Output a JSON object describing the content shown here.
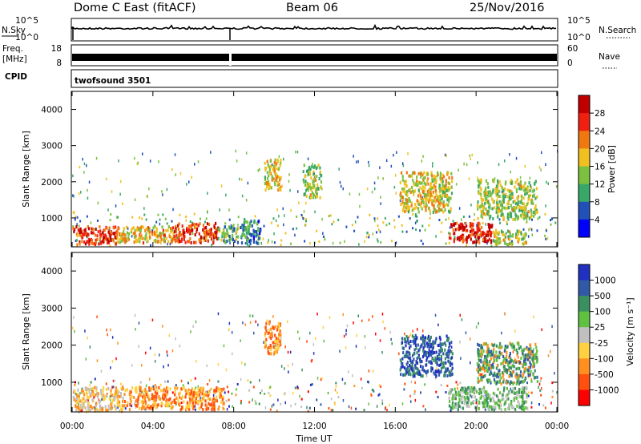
{
  "header": {
    "station": "Dome C East (fitACF)",
    "beam": "Beam 06",
    "date": "25/Nov/2016"
  },
  "strips": {
    "nsky_label": "N.Sky",
    "nsky_ticks": [
      "10^5",
      "10^0"
    ],
    "nsearch_label": "N.Search",
    "nsearch_ticks": [
      "10^5",
      "10^0"
    ],
    "freq_label": "Freq.",
    "freq_unit": "[MHz]",
    "freq_ticks": [
      "18",
      "8"
    ],
    "nave_label": "Nave",
    "nave_ticks": [
      "60",
      "0"
    ],
    "cpid_label": "CPID",
    "cpid_value": "twofsound 3501"
  },
  "chart_data": [
    {
      "type": "heatmap",
      "name": "power",
      "ylabel": "Slant Range [km]",
      "ylim": [
        200,
        4500
      ],
      "yticks": [
        "4000",
        "3000",
        "2000",
        "1000"
      ],
      "xlim": [
        0,
        24
      ],
      "colorbar": {
        "label": "Power [dB]",
        "ticks": [
          "28",
          "24",
          "20",
          "16",
          "12",
          "8",
          "4"
        ],
        "range": [
          0,
          30
        ],
        "colors": [
          "#0000ff",
          "#2050b8",
          "#38a868",
          "#7cc040",
          "#f0c020",
          "#f07810",
          "#f02010",
          "#c00000"
        ]
      },
      "regions": [
        {
          "t": [
            0,
            2.2
          ],
          "r": [
            300,
            800
          ],
          "level": 0.85
        },
        {
          "t": [
            2.2,
            5.0
          ],
          "r": [
            350,
            800
          ],
          "level": 0.6
        },
        {
          "t": [
            5.0,
            7.2
          ],
          "r": [
            350,
            900
          ],
          "level": 0.85
        },
        {
          "t": [
            7.2,
            8.2
          ],
          "r": [
            350,
            800
          ],
          "level": 0.35
        },
        {
          "t": [
            8.3,
            9.3
          ],
          "r": [
            300,
            1000
          ],
          "level": 0.25
        },
        {
          "t": [
            9.5,
            10.3
          ],
          "r": [
            1800,
            2700
          ],
          "level": 0.55
        },
        {
          "t": [
            11.4,
            12.3
          ],
          "r": [
            1600,
            2500
          ],
          "level": 0.45
        },
        {
          "t": [
            16.2,
            18.8
          ],
          "r": [
            1200,
            2300
          ],
          "level": 0.55
        },
        {
          "t": [
            18.6,
            20.8
          ],
          "r": [
            350,
            900
          ],
          "level": 0.9
        },
        {
          "t": [
            20.8,
            22.5
          ],
          "r": [
            300,
            700
          ],
          "level": 0.5
        },
        {
          "t": [
            20.0,
            23.0
          ],
          "r": [
            1000,
            2100
          ],
          "level": 0.45
        }
      ]
    },
    {
      "type": "heatmap",
      "name": "velocity",
      "ylabel": "Slant Range [km]",
      "ylim": [
        200,
        4500
      ],
      "yticks": [
        "4000",
        "3000",
        "2000",
        "1000"
      ],
      "xlabel": "Time UT",
      "xlim": [
        0,
        24
      ],
      "xticks": [
        "00:00",
        "04:00",
        "08:00",
        "12:00",
        "16:00",
        "20:00",
        "00:00"
      ],
      "colorbar": {
        "label": "Velocity [m s⁻¹]",
        "ticks": [
          "1000",
          "500",
          "100",
          "25",
          "-25",
          "-100",
          "-500",
          "-1000"
        ],
        "colors": [
          "#ff0000",
          "#ff5010",
          "#ff9020",
          "#ffd040",
          "#c0c0c0",
          "#60c040",
          "#3a9060",
          "#305aa8",
          "#2030c0"
        ]
      },
      "regions": [
        {
          "t": [
            0,
            2.5
          ],
          "r": [
            250,
            900
          ],
          "cls": "slow-away"
        },
        {
          "t": [
            2.5,
            7.5
          ],
          "r": [
            300,
            900
          ],
          "cls": "away"
        },
        {
          "t": [
            9.5,
            10.3
          ],
          "r": [
            1800,
            2700
          ],
          "cls": "away"
        },
        {
          "t": [
            16.2,
            18.8
          ],
          "r": [
            1200,
            2300
          ],
          "cls": "toward"
        },
        {
          "t": [
            18.6,
            22.5
          ],
          "r": [
            300,
            900
          ],
          "cls": "slow-toward"
        },
        {
          "t": [
            20.0,
            23.0
          ],
          "r": [
            1000,
            2100
          ],
          "cls": "mixed"
        }
      ]
    }
  ]
}
